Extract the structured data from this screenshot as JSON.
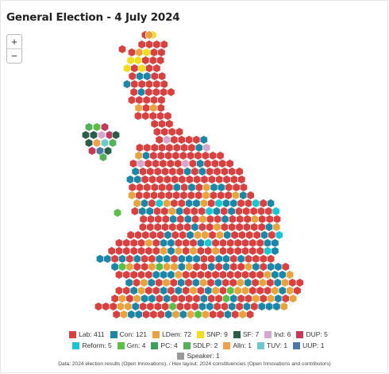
{
  "title": "General Election - 4 July 2024",
  "zoom": {
    "in_label": "+",
    "out_label": "−"
  },
  "source": "Data: 2024 election results (Open Innovations). / Hex layout: 2024 constituencies (Open Innovations and contributors)",
  "colors": {
    "lab": "#d8413f",
    "con": "#1b86a8",
    "ldem": "#e8a33d",
    "snp": "#f3dd1d",
    "sf": "#2b5e49",
    "ind": "#d7a6ce",
    "dup": "#c53a5b",
    "reform": "#16c6d3",
    "grn": "#5cbf45",
    "pc": "#3d9e5c",
    "sdlp": "#55b05a",
    "alln": "#f0a04a",
    "tuv": "#6bc8cc",
    "uup": "#4a78a8",
    "speaker": "#999999"
  },
  "legend": [
    {
      "key": "lab",
      "label": "Lab: 411"
    },
    {
      "key": "con",
      "label": "Con: 121"
    },
    {
      "key": "ldem",
      "label": "LDem: 72"
    },
    {
      "key": "snp",
      "label": "SNP: 9"
    },
    {
      "key": "sf",
      "label": "SF: 7"
    },
    {
      "key": "ind",
      "label": "Ind: 6"
    },
    {
      "key": "dup",
      "label": "DUP: 5"
    },
    {
      "key": "reform",
      "label": "Reform: 5"
    },
    {
      "key": "grn",
      "label": "Grn: 4"
    },
    {
      "key": "pc",
      "label": "PC: 4"
    },
    {
      "key": "sdlp",
      "label": "SDLP: 2"
    },
    {
      "key": "alln",
      "label": "Alln: 1"
    },
    {
      "key": "tuv",
      "label": "TUV: 1"
    },
    {
      "key": "uup",
      "label": "UUP: 1"
    },
    {
      "key": "speaker",
      "label": "Speaker: 1"
    }
  ]
}
